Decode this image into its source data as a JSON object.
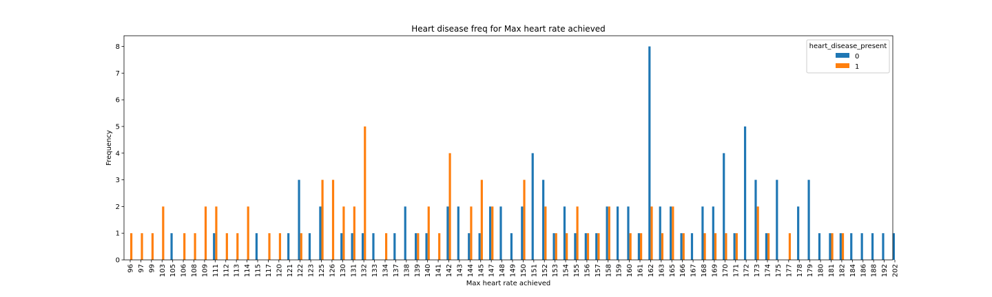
{
  "chart_data": {
    "type": "bar",
    "title": "Heart disease freq for Max heart rate achieved",
    "xlabel": "Max heart rate achieved",
    "ylabel": "Frequency",
    "ylim": [
      0,
      8.4
    ],
    "yticks": [
      0,
      1,
      2,
      3,
      4,
      5,
      6,
      7,
      8
    ],
    "grid": false,
    "legend": {
      "title": "heart_disease_present",
      "placement": "top-right"
    },
    "categories": [
      "96",
      "97",
      "99",
      "103",
      "105",
      "106",
      "108",
      "109",
      "111",
      "112",
      "113",
      "114",
      "115",
      "117",
      "120",
      "121",
      "122",
      "123",
      "125",
      "126",
      "130",
      "131",
      "132",
      "133",
      "134",
      "137",
      "138",
      "139",
      "140",
      "141",
      "142",
      "143",
      "144",
      "145",
      "147",
      "148",
      "149",
      "150",
      "151",
      "152",
      "153",
      "154",
      "155",
      "156",
      "157",
      "158",
      "159",
      "160",
      "161",
      "162",
      "163",
      "165",
      "166",
      "167",
      "168",
      "169",
      "170",
      "171",
      "172",
      "173",
      "174",
      "175",
      "177",
      "178",
      "179",
      "180",
      "181",
      "182",
      "184",
      "186",
      "188",
      "192",
      "202"
    ],
    "series": [
      {
        "name": "0",
        "color": "#1f77b4",
        "values": [
          0,
          0,
          0,
          0,
          1,
          0,
          0,
          0,
          1,
          0,
          0,
          0,
          1,
          0,
          0,
          1,
          3,
          1,
          2,
          0,
          1,
          1,
          1,
          1,
          0,
          1,
          2,
          1,
          1,
          0,
          2,
          2,
          1,
          1,
          2,
          2,
          1,
          2,
          4,
          3,
          1,
          2,
          1,
          1,
          1,
          2,
          2,
          2,
          1,
          8,
          2,
          2,
          1,
          1,
          2,
          2,
          4,
          1,
          5,
          3,
          1,
          3,
          0,
          2,
          3,
          1,
          1,
          1,
          1,
          1,
          1,
          1,
          1
        ]
      },
      {
        "name": "1",
        "color": "#ff7f0e",
        "values": [
          1,
          1,
          1,
          2,
          0,
          1,
          1,
          2,
          2,
          1,
          1,
          2,
          0,
          1,
          1,
          0,
          1,
          0,
          3,
          3,
          2,
          2,
          5,
          0,
          1,
          0,
          0,
          1,
          2,
          1,
          4,
          0,
          2,
          3,
          2,
          0,
          0,
          3,
          0,
          2,
          1,
          1,
          2,
          1,
          1,
          2,
          0,
          1,
          1,
          2,
          1,
          2,
          1,
          0,
          1,
          1,
          1,
          1,
          0,
          2,
          1,
          0,
          1,
          0,
          0,
          0,
          1,
          1,
          0,
          0,
          0,
          0,
          0
        ]
      }
    ]
  }
}
